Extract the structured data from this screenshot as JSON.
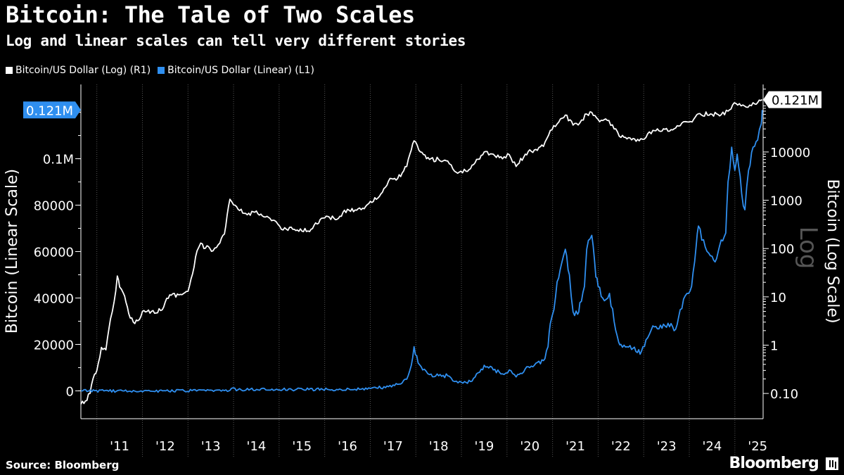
{
  "header": {
    "title": "Bitcoin: The Tale of Two Scales",
    "subtitle": "Log and linear scales can tell very different stories"
  },
  "legend": [
    {
      "label": "Bitcoin/US Dollar (Log) (R1)",
      "color": "#ffffff"
    },
    {
      "label": "Bitcoin/US Dollar (Linear) (L1)",
      "color": "#2f8ff0"
    }
  ],
  "footer": {
    "source": "Source: Bloomberg",
    "brand": "Bloomberg"
  },
  "chart_data": {
    "type": "line",
    "title": "Bitcoin: The Tale of Two Scales",
    "subtitle": "Log and linear scales can tell very different stories",
    "watermark": "Log",
    "x_tick_labels": [
      "'11",
      "'12",
      "'13",
      "'14",
      "'15",
      "'16",
      "'17",
      "'18",
      "'19",
      "'20",
      "'21",
      "'22",
      "'23",
      "'24",
      "'25"
    ],
    "x_range": [
      2010.65,
      2025.62
    ],
    "left_axis": {
      "label": "Bitcoin (Linear Scale)",
      "scale": "linear",
      "range": [
        -12000,
        132000
      ],
      "ticks": [
        0,
        20000,
        40000,
        60000,
        80000,
        100000
      ],
      "tick_labels": [
        "0",
        "20000",
        "40000",
        "60000",
        "80000",
        "0.1M"
      ],
      "last_value_label": "0.121M"
    },
    "right_axis": {
      "label": "Bitcoin (Log Scale)",
      "scale": "log",
      "range": [
        0.03,
        250000
      ],
      "ticks": [
        0.1,
        1,
        10,
        100,
        1000,
        10000
      ],
      "tick_labels": [
        "0.10",
        "1",
        "10",
        "100",
        "1000",
        "10000"
      ],
      "last_value_label": "0.121M"
    },
    "series": [
      {
        "name": "Bitcoin/US Dollar (Log) (R1)",
        "axis": "right",
        "color": "#ffffff",
        "x": [
          2010.65,
          2010.75,
          2010.85,
          2010.95,
          2011.0,
          2011.1,
          2011.2,
          2011.3,
          2011.38,
          2011.45,
          2011.5,
          2011.58,
          2011.7,
          2011.8,
          2011.9,
          2012.0,
          2012.2,
          2012.4,
          2012.6,
          2012.8,
          2013.0,
          2013.1,
          2013.2,
          2013.28,
          2013.35,
          2013.45,
          2013.55,
          2013.7,
          2013.8,
          2013.92,
          2014.0,
          2014.1,
          2014.3,
          2014.5,
          2014.7,
          2014.9,
          2015.05,
          2015.3,
          2015.5,
          2015.7,
          2015.9,
          2016.0,
          2016.3,
          2016.5,
          2016.7,
          2016.9,
          2017.0,
          2017.2,
          2017.4,
          2017.6,
          2017.8,
          2017.9,
          2017.96,
          2018.1,
          2018.3,
          2018.5,
          2018.7,
          2018.85,
          2018.95,
          2019.1,
          2019.3,
          2019.5,
          2019.7,
          2019.9,
          2020.05,
          2020.2,
          2020.4,
          2020.6,
          2020.8,
          2020.95,
          2021.1,
          2021.28,
          2021.45,
          2021.6,
          2021.75,
          2021.86,
          2022.0,
          2022.2,
          2022.35,
          2022.5,
          2022.7,
          2022.9,
          2023.05,
          2023.2,
          2023.4,
          2023.6,
          2023.8,
          2023.95,
          2024.1,
          2024.2,
          2024.5,
          2024.7,
          2024.85,
          2024.95,
          2025.1,
          2025.25,
          2025.4,
          2025.5,
          2025.6
        ],
        "values": [
          0.06,
          0.07,
          0.1,
          0.25,
          0.3,
          0.9,
          0.8,
          3.5,
          8,
          27,
          16,
          12,
          4.5,
          3,
          3.2,
          5,
          5,
          5.2,
          11,
          11,
          13,
          30,
          90,
          130,
          100,
          110,
          90,
          130,
          200,
          1050,
          800,
          650,
          500,
          600,
          450,
          380,
          250,
          250,
          230,
          250,
          400,
          430,
          420,
          650,
          620,
          750,
          950,
          1200,
          2500,
          2800,
          5000,
          11000,
          17000,
          10000,
          7000,
          7000,
          6500,
          4000,
          3800,
          4000,
          6000,
          10000,
          9000,
          7200,
          8800,
          5000,
          9000,
          11000,
          13000,
          28000,
          38000,
          58000,
          36000,
          40000,
          61000,
          66000,
          47000,
          45000,
          30000,
          20000,
          19500,
          17000,
          20000,
          28000,
          27000,
          29000,
          35000,
          42000,
          48000,
          62000,
          60000,
          59000,
          70000,
          94000,
          100000,
          85000,
          105000,
          105000,
          121000
        ]
      },
      {
        "name": "Bitcoin/US Dollar (Linear) (L1)",
        "axis": "left",
        "color": "#2f8ff0",
        "x": [
          2010.65,
          2013.9,
          2013.95,
          2014.1,
          2016.8,
          2017.0,
          2017.4,
          2017.6,
          2017.8,
          2017.9,
          2017.96,
          2018.05,
          2018.15,
          2018.3,
          2018.5,
          2018.7,
          2018.85,
          2019.0,
          2019.2,
          2019.4,
          2019.5,
          2019.7,
          2019.9,
          2020.05,
          2020.2,
          2020.4,
          2020.6,
          2020.8,
          2020.9,
          2020.95,
          2021.03,
          2021.1,
          2021.2,
          2021.28,
          2021.37,
          2021.45,
          2021.55,
          2021.6,
          2021.7,
          2021.75,
          2021.86,
          2021.95,
          2022.0,
          2022.1,
          2022.25,
          2022.35,
          2022.45,
          2022.5,
          2022.7,
          2022.86,
          2022.95,
          2023.05,
          2023.2,
          2023.4,
          2023.6,
          2023.7,
          2023.8,
          2023.95,
          2024.05,
          2024.15,
          2024.2,
          2024.35,
          2024.5,
          2024.6,
          2024.7,
          2024.8,
          2024.85,
          2024.93,
          2025.0,
          2025.05,
          2025.15,
          2025.22,
          2025.3,
          2025.4,
          2025.5,
          2025.58,
          2025.6
        ],
        "values": [
          0,
          0,
          1000,
          500,
          700,
          1000,
          1800,
          2800,
          5000,
          11000,
          19000,
          12000,
          9000,
          7000,
          6500,
          6500,
          4000,
          3700,
          4000,
          8000,
          11000,
          9000,
          7300,
          9000,
          6000,
          9500,
          11000,
          13000,
          19000,
          29000,
          35000,
          47000,
          55000,
          61000,
          50000,
          34000,
          33000,
          38000,
          45000,
          61000,
          67000,
          49000,
          45000,
          40000,
          42000,
          30000,
          21000,
          20000,
          19500,
          16500,
          17000,
          22000,
          28000,
          27000,
          29000,
          26500,
          35000,
          42000,
          45000,
          62000,
          71000,
          62000,
          58000,
          57000,
          65000,
          68000,
          90000,
          105000,
          95000,
          102000,
          85000,
          78000,
          95000,
          105000,
          108000,
          115000,
          121000
        ]
      }
    ]
  }
}
